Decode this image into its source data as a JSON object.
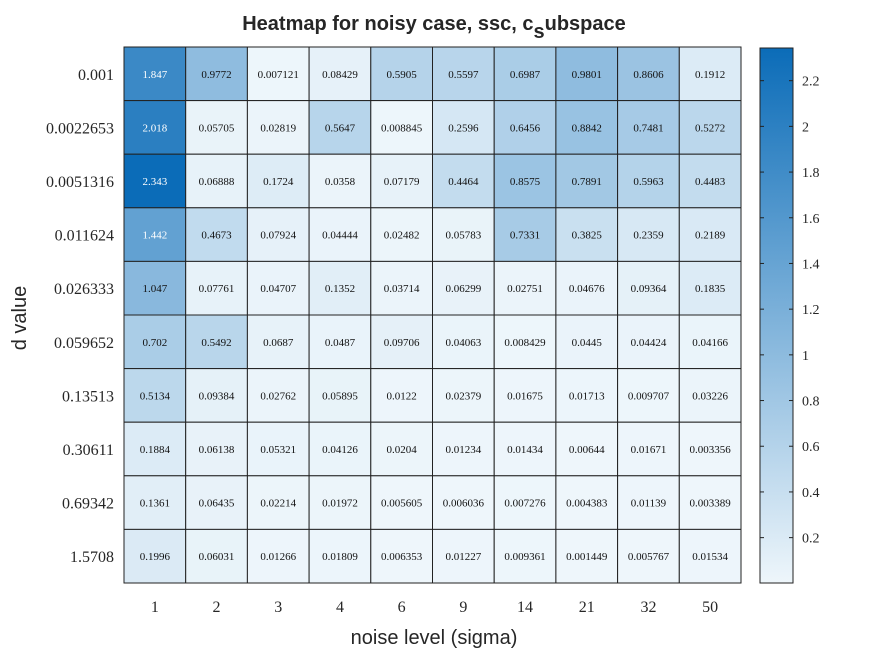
{
  "chart_data": {
    "type": "heatmap",
    "title": {
      "main": "Heatmap for noisy case, ssc, c",
      "subscript": "s",
      "rest": "ubspace"
    },
    "xlabel": "noise level (sigma)",
    "ylabel": "d value",
    "x_categories": [
      "1",
      "2",
      "3",
      "4",
      "6",
      "9",
      "14",
      "21",
      "32",
      "50"
    ],
    "y_categories": [
      "0.001",
      "0.0022653",
      "0.0051316",
      "0.011624",
      "0.026333",
      "0.059652",
      "0.13513",
      "0.30611",
      "0.69342",
      "1.5708"
    ],
    "cells": [
      [
        "1.847",
        "0.9772",
        "0.007121",
        "0.08429",
        "0.5905",
        "0.5597",
        "0.6987",
        "0.9801",
        "0.8606",
        "0.1912"
      ],
      [
        "2.018",
        "0.05705",
        "0.02819",
        "0.5647",
        "0.008845",
        "0.2596",
        "0.6456",
        "0.8842",
        "0.7481",
        "0.5272"
      ],
      [
        "2.343",
        "0.06888",
        "0.1724",
        "0.0358",
        "0.07179",
        "0.4464",
        "0.8575",
        "0.7891",
        "0.5963",
        "0.4483"
      ],
      [
        "1.442",
        "0.4673",
        "0.07924",
        "0.04444",
        "0.02482",
        "0.05783",
        "0.7331",
        "0.3825",
        "0.2359",
        "0.2189"
      ],
      [
        "1.047",
        "0.07761",
        "0.04707",
        "0.1352",
        "0.03714",
        "0.06299",
        "0.02751",
        "0.04676",
        "0.09364",
        "0.1835"
      ],
      [
        "0.702",
        "0.5492",
        "0.0687",
        "0.0487",
        "0.09706",
        "0.04063",
        "0.008429",
        "0.0445",
        "0.04424",
        "0.04166"
      ],
      [
        "0.5134",
        "0.09384",
        "0.02762",
        "0.05895",
        "0.0122",
        "0.02379",
        "0.01675",
        "0.01713",
        "0.009707",
        "0.03226"
      ],
      [
        "0.1884",
        "0.06138",
        "0.05321",
        "0.04126",
        "0.0204",
        "0.01234",
        "0.01434",
        "0.00644",
        "0.01671",
        "0.003356"
      ],
      [
        "0.1361",
        "0.06435",
        "0.02214",
        "0.01972",
        "0.005605",
        "0.006036",
        "0.007276",
        "0.004383",
        "0.01139",
        "0.003389"
      ],
      [
        "0.1996",
        "0.06031",
        "0.01266",
        "0.01809",
        "0.006353",
        "0.01227",
        "0.009361",
        "0.001449",
        "0.005767",
        "0.01534"
      ]
    ],
    "colorbar": {
      "ticks": [
        "0.2",
        "0.4",
        "0.6",
        "0.8",
        "1",
        "1.2",
        "1.4",
        "1.6",
        "1.8",
        "2",
        "2.2"
      ],
      "range": [
        0.001449,
        2.343
      ]
    },
    "colors": {
      "low": "#eef6fb",
      "high": "#0b6cb8",
      "grid": "#222222"
    }
  }
}
